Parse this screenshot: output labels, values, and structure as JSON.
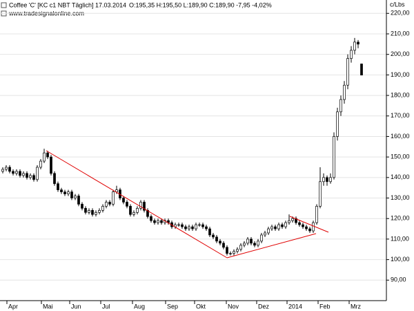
{
  "chart_data": {
    "type": "candlestick",
    "title": "Coffee 'C' [KC c1 NBT  Täglich] 17.03.2014",
    "quote": "O:195,35 H:195,50 L:189,90 C:189,90 -7,95 -4,02%",
    "source": "www.tradesignalonline.com",
    "y_label": "c/Lbs",
    "up_color": "#ffffff",
    "down_color": "#000000",
    "wick_color": "#000000",
    "quote_color": "#cc0000",
    "grid": true,
    "ylim": [
      80,
      226.5
    ],
    "yticks": [
      {
        "value": 90,
        "label": "90,00"
      },
      {
        "value": 100,
        "label": "100,00"
      },
      {
        "value": 110,
        "label": "110,00"
      },
      {
        "value": 120,
        "label": "120,00"
      },
      {
        "value": 130,
        "label": "130,00"
      },
      {
        "value": 140,
        "label": "140,00"
      },
      {
        "value": 150,
        "label": "150,00"
      },
      {
        "value": 160,
        "label": "160,00"
      },
      {
        "value": 170,
        "label": "170,00"
      },
      {
        "value": 180,
        "label": "180,00"
      },
      {
        "value": 190,
        "label": "190,00"
      },
      {
        "value": 200,
        "label": "200,00"
      },
      {
        "value": 210,
        "label": "210,00"
      },
      {
        "value": 220,
        "label": "220,00"
      }
    ],
    "xlim": [
      -0.8,
      111.2
    ],
    "xticks": [
      {
        "value": 1.2,
        "label": "Apr"
      },
      {
        "value": 11.2,
        "label": "Mai"
      },
      {
        "value": 19.4,
        "label": "Jun"
      },
      {
        "value": 28.4,
        "label": "Jul"
      },
      {
        "value": 37.6,
        "label": "Aug"
      },
      {
        "value": 47.2,
        "label": "Sep"
      },
      {
        "value": 55.6,
        "label": "Okt"
      },
      {
        "value": 64.8,
        "label": "Nov"
      },
      {
        "value": 73.6,
        "label": "Dez"
      },
      {
        "value": 82.4,
        "label": "2014"
      },
      {
        "value": 91.4,
        "label": "Feb"
      },
      {
        "value": 100.4,
        "label": "Mrz"
      }
    ],
    "candles": [
      [
        143,
        145,
        142,
        144
      ],
      [
        144,
        146,
        143,
        145
      ],
      [
        145,
        146,
        142,
        143
      ],
      [
        143,
        144,
        141,
        142
      ],
      [
        142,
        144,
        141,
        143
      ],
      [
        143,
        144,
        140,
        141
      ],
      [
        141,
        143,
        140,
        142
      ],
      [
        142,
        143,
        139,
        140
      ],
      [
        140,
        142,
        139,
        141
      ],
      [
        141,
        142,
        138,
        139
      ],
      [
        139,
        146,
        138,
        145
      ],
      [
        145,
        149,
        144,
        148
      ],
      [
        148,
        154,
        147,
        152
      ],
      [
        152,
        153,
        149,
        150
      ],
      [
        150,
        151,
        141,
        142
      ],
      [
        142,
        143,
        136,
        137
      ],
      [
        137,
        138,
        133,
        134
      ],
      [
        134,
        135,
        132,
        133
      ],
      [
        133,
        134,
        131,
        132
      ],
      [
        132,
        134,
        131,
        133
      ],
      [
        133,
        134,
        129,
        130
      ],
      [
        130,
        132,
        129,
        131
      ],
      [
        131,
        132,
        126,
        127
      ],
      [
        127,
        128,
        124,
        125
      ],
      [
        125,
        126,
        122,
        123
      ],
      [
        123,
        125,
        122,
        124
      ],
      [
        124,
        125,
        121,
        122
      ],
      [
        122,
        124,
        121,
        123
      ],
      [
        123,
        125,
        122,
        124
      ],
      [
        124,
        127,
        123,
        126
      ],
      [
        126,
        129,
        125,
        128
      ],
      [
        128,
        129,
        126,
        127
      ],
      [
        127,
        134,
        126,
        133
      ],
      [
        133,
        136,
        132,
        134
      ],
      [
        134,
        135,
        129,
        130
      ],
      [
        130,
        131,
        127,
        128
      ],
      [
        128,
        129,
        125,
        126
      ],
      [
        126,
        127,
        121,
        122
      ],
      [
        122,
        124,
        121,
        123
      ],
      [
        123,
        126,
        122,
        125
      ],
      [
        125,
        129,
        124,
        128
      ],
      [
        128,
        129,
        123,
        124
      ],
      [
        124,
        125,
        120,
        121
      ],
      [
        121,
        122,
        118,
        119
      ],
      [
        119,
        120,
        117,
        118
      ],
      [
        118,
        120,
        117,
        119
      ],
      [
        119,
        120,
        117,
        118
      ],
      [
        118,
        120,
        117,
        119
      ],
      [
        119,
        120,
        117,
        118
      ],
      [
        118,
        119,
        115,
        116
      ],
      [
        116,
        118,
        115,
        117
      ],
      [
        117,
        118,
        116,
        117
      ],
      [
        117,
        118,
        115,
        116
      ],
      [
        116,
        117,
        114,
        115
      ],
      [
        115,
        117,
        114,
        116
      ],
      [
        116,
        117,
        114,
        115
      ],
      [
        115,
        118,
        114,
        117
      ],
      [
        117,
        118,
        116,
        117
      ],
      [
        117,
        118,
        115,
        116
      ],
      [
        116,
        117,
        114,
        115
      ],
      [
        115,
        116,
        111,
        112
      ],
      [
        112,
        113,
        110,
        111
      ],
      [
        111,
        112,
        108,
        109
      ],
      [
        109,
        110,
        107,
        108
      ],
      [
        108,
        109,
        105,
        106
      ],
      [
        106,
        107,
        102,
        103
      ],
      [
        103,
        104,
        102,
        103
      ],
      [
        103,
        105,
        102,
        104
      ],
      [
        104,
        106,
        103,
        105
      ],
      [
        105,
        108,
        104,
        107
      ],
      [
        107,
        109,
        106,
        108
      ],
      [
        108,
        111,
        107,
        110
      ],
      [
        110,
        111,
        107,
        108
      ],
      [
        108,
        109,
        106,
        107
      ],
      [
        107,
        110,
        106,
        109
      ],
      [
        109,
        113,
        108,
        112
      ],
      [
        112,
        114,
        111,
        113
      ],
      [
        113,
        116,
        112,
        115
      ],
      [
        115,
        117,
        114,
        116
      ],
      [
        116,
        117,
        114,
        115
      ],
      [
        115,
        118,
        114,
        117
      ],
      [
        117,
        118,
        115,
        116
      ],
      [
        116,
        119,
        115,
        118
      ],
      [
        118,
        122,
        117,
        119
      ],
      [
        119,
        121,
        118,
        120
      ],
      [
        120,
        121,
        117,
        118
      ],
      [
        118,
        119,
        116,
        117
      ],
      [
        117,
        118,
        115,
        116
      ],
      [
        116,
        117,
        114,
        115
      ],
      [
        115,
        116,
        113,
        114
      ],
      [
        114,
        119,
        113,
        118
      ],
      [
        118,
        127,
        117,
        126
      ],
      [
        126,
        145,
        125,
        138
      ],
      [
        138,
        142,
        136,
        140
      ],
      [
        140,
        141,
        136,
        138
      ],
      [
        138,
        142,
        137,
        140
      ],
      [
        140,
        162,
        139,
        160
      ],
      [
        160,
        174,
        158,
        172
      ],
      [
        172,
        180,
        170,
        178
      ],
      [
        178,
        187,
        176,
        185
      ],
      [
        185,
        200,
        183,
        198
      ],
      [
        198,
        204,
        196,
        202
      ],
      [
        202,
        208,
        200,
        206
      ],
      [
        206,
        207,
        203,
        205
      ],
      [
        195.35,
        195.5,
        189.9,
        189.9
      ]
    ]
  }
}
